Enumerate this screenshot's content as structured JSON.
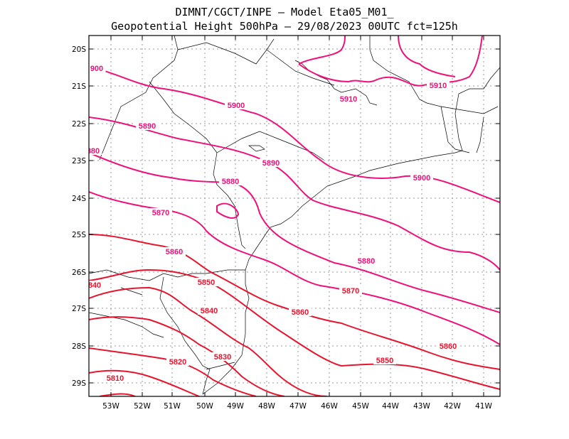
{
  "header": {
    "line1": "DIMNT/CGCT/INPE –  Model Eta05_M01_",
    "line2": "Geopotential Height 500hPa –  29/08/2023 00UTC fct=125h"
  },
  "axes": {
    "lat_labels": [
      "20S",
      "21S",
      "22S",
      "23S",
      "24S",
      "25S",
      "26S",
      "27S",
      "28S",
      "29S"
    ],
    "lon_labels": [
      "53W",
      "52W",
      "51W",
      "50W",
      "49W",
      "48W",
      "47W",
      "46W",
      "45W",
      "44W",
      "43W",
      "42W",
      "41W"
    ]
  },
  "colors": {
    "contour_magenta": "#f0107a",
    "contour_red": "#e8142e",
    "coast": "#000000",
    "grid": "#9a9a9a"
  },
  "contour_labels": [
    "900",
    "5910",
    "5910",
    "5900",
    "5890",
    "880",
    "5890",
    "5880",
    "5900",
    "5870",
    "5860",
    "5880",
    "840",
    "5850",
    "5870",
    "5840",
    "5860",
    "5830",
    "5820",
    "5860",
    "5850",
    "5810"
  ]
}
